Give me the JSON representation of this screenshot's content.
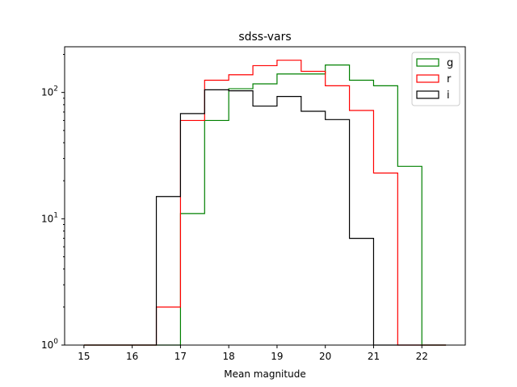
{
  "chart_data": {
    "type": "histogram",
    "title": "sdss-vars",
    "xlabel": "Mean magnitude",
    "ylabel": "",
    "xlim": [
      14.6,
      22.9
    ],
    "ylim": [
      1,
      230
    ],
    "yscale": "log",
    "x_ticks": [
      "15",
      "16",
      "17",
      "18",
      "19",
      "20",
      "21",
      "22"
    ],
    "y_ticks": [
      {
        "base": "10",
        "exp": "0",
        "value": 1
      },
      {
        "base": "10",
        "exp": "1",
        "value": 10
      },
      {
        "base": "10",
        "exp": "2",
        "value": 100
      }
    ],
    "bin_edges": [
      15.0,
      15.5,
      16.0,
      16.5,
      17.0,
      17.5,
      18.0,
      18.5,
      19.0,
      19.5,
      20.0,
      20.5,
      21.0,
      21.5,
      22.0,
      22.5
    ],
    "legend": {
      "placement": "top-right"
    },
    "grid": false,
    "series": [
      {
        "name": "g",
        "color": "#008000",
        "values": [
          0,
          0,
          0,
          0,
          11,
          60,
          107,
          117,
          140,
          140,
          165,
          125,
          113,
          26,
          0
        ]
      },
      {
        "name": "r",
        "color": "#ff0000",
        "values": [
          0,
          0,
          0,
          2,
          60,
          125,
          138,
          163,
          180,
          147,
          113,
          72,
          23,
          0,
          0
        ]
      },
      {
        "name": "i",
        "color": "#000000",
        "values": [
          0,
          0,
          0,
          15,
          68,
          105,
          103,
          78,
          93,
          71,
          61,
          7,
          0,
          0,
          0
        ]
      }
    ]
  }
}
